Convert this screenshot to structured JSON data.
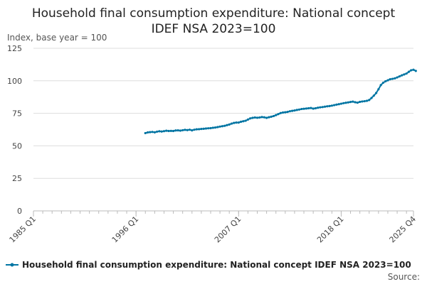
{
  "colors": {
    "series": "#0075a3",
    "grid": "#dddddd",
    "axis": "#bbbbbb"
  },
  "footer": {
    "source_label": "Source:"
  },
  "chart_data": {
    "type": "line",
    "title": "Household final consumption expenditure: National concept",
    "title_line2": "IDEF NSA 2023=100",
    "ylabel": "Index, base year = 100",
    "ylim": [
      0,
      125
    ],
    "yticks": [
      0,
      25,
      50,
      75,
      100,
      125
    ],
    "xlim": [
      1985.0,
      2025.75
    ],
    "xticks": [
      {
        "value": 1985.0,
        "label": "1985 Q1"
      },
      {
        "value": 1996.0,
        "label": "1996 Q1"
      },
      {
        "value": 2007.0,
        "label": "2007 Q1"
      },
      {
        "value": 2018.0,
        "label": "2018 Q1"
      },
      {
        "value": 2025.75,
        "label": "2025 Q4"
      }
    ],
    "minor_tick_step": 1,
    "legend_position": "bottom",
    "series": [
      {
        "name": "Household final consumption expenditure: National concept IDEF NSA 2023=100",
        "start_year": 1997,
        "start_quarter": 1,
        "marker": "circle",
        "values": [
          59.8,
          60.3,
          60.5,
          60.7,
          60.4,
          60.9,
          61.2,
          61.0,
          61.3,
          61.6,
          61.4,
          61.5,
          61.4,
          61.8,
          61.9,
          61.7,
          62.0,
          62.3,
          62.1,
          62.4,
          61.9,
          62.4,
          62.7,
          62.8,
          63.0,
          63.1,
          63.3,
          63.5,
          63.6,
          63.9,
          64.1,
          64.4,
          64.8,
          65.1,
          65.4,
          65.9,
          66.4,
          67.1,
          67.6,
          67.9,
          67.9,
          68.5,
          68.9,
          69.3,
          70.2,
          71.1,
          71.5,
          71.8,
          71.6,
          71.8,
          72.1,
          71.9,
          71.5,
          72.0,
          72.4,
          72.9,
          73.6,
          74.4,
          75.2,
          75.6,
          75.8,
          76.1,
          76.6,
          76.9,
          77.2,
          77.6,
          77.9,
          78.3,
          78.5,
          78.7,
          78.9,
          79.1,
          78.6,
          78.9,
          79.3,
          79.6,
          79.8,
          80.1,
          80.4,
          80.6,
          80.9,
          81.3,
          81.7,
          82.0,
          82.4,
          82.8,
          83.1,
          83.4,
          83.7,
          84.0,
          83.5,
          83.2,
          83.8,
          84.1,
          84.3,
          84.6,
          85.2,
          86.8,
          88.6,
          90.6,
          93.5,
          96.7,
          98.5,
          99.6,
          100.4,
          101.2,
          101.5,
          101.9,
          102.6,
          103.4,
          104.2,
          104.9,
          105.6,
          106.9,
          108.1,
          108.5,
          107.6
        ]
      }
    ]
  }
}
